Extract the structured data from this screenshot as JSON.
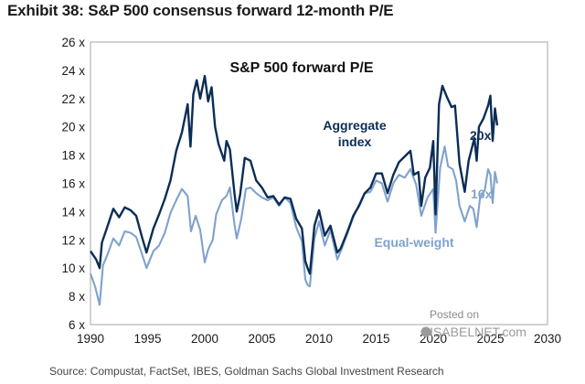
{
  "header": {
    "title": "Exhibit 38: S&P 500 consensus forward 12-month P/E"
  },
  "footer": {
    "source": "Source: Compustat, FactSet, IBES, Goldman Sachs Global Investment Research"
  },
  "watermark": {
    "line1": "Posted on",
    "line2": "ISABELNET.com"
  },
  "colors": {
    "aggregate": "#0b2d55",
    "equal_weight": "#7fa2cd",
    "frame": "#a6a6a6"
  },
  "chart_data": {
    "type": "line",
    "title": "S&P 500 forward P/E",
    "xlabel": "",
    "ylabel": "",
    "xlim": [
      1990,
      2030
    ],
    "ylim": [
      6,
      26
    ],
    "x_ticks": [
      1990,
      1995,
      2000,
      2005,
      2010,
      2015,
      2020,
      2025,
      2030
    ],
    "y_ticks": [
      6,
      8,
      10,
      12,
      14,
      16,
      18,
      20,
      22,
      24,
      26
    ],
    "y_tick_labels": [
      "6 x",
      "8 x",
      "10 x",
      "12 x",
      "14 x",
      "16 x",
      "18 x",
      "20 x",
      "22 x",
      "24 x",
      "26 x"
    ],
    "series": [
      {
        "name": "Aggregate index",
        "label_lines": [
          "Aggregate",
          "index"
        ],
        "end_label": "20x",
        "points": [
          [
            1990.0,
            11.2
          ],
          [
            1990.5,
            10.6
          ],
          [
            1990.8,
            10.0
          ],
          [
            1991.0,
            11.8
          ],
          [
            1991.5,
            13.0
          ],
          [
            1992.0,
            14.2
          ],
          [
            1992.5,
            13.6
          ],
          [
            1993.0,
            14.3
          ],
          [
            1993.5,
            14.1
          ],
          [
            1994.0,
            13.7
          ],
          [
            1994.5,
            12.2
          ],
          [
            1994.9,
            11.1
          ],
          [
            1995.5,
            12.8
          ],
          [
            1996.0,
            13.8
          ],
          [
            1996.5,
            14.9
          ],
          [
            1997.0,
            16.2
          ],
          [
            1997.5,
            18.3
          ],
          [
            1998.0,
            19.6
          ],
          [
            1998.5,
            21.6
          ],
          [
            1998.75,
            18.6
          ],
          [
            1999.0,
            22.3
          ],
          [
            1999.3,
            23.3
          ],
          [
            1999.6,
            22.0
          ],
          [
            2000.0,
            23.6
          ],
          [
            2000.3,
            21.8
          ],
          [
            2000.6,
            22.8
          ],
          [
            2000.9,
            20.0
          ],
          [
            2001.2,
            18.8
          ],
          [
            2001.7,
            17.6
          ],
          [
            2001.9,
            19.0
          ],
          [
            2002.2,
            18.4
          ],
          [
            2002.6,
            15.3
          ],
          [
            2002.8,
            14.0
          ],
          [
            2003.1,
            15.2
          ],
          [
            2003.5,
            17.8
          ],
          [
            2004.0,
            17.6
          ],
          [
            2004.5,
            16.2
          ],
          [
            2005.0,
            15.7
          ],
          [
            2005.5,
            15.0
          ],
          [
            2006.0,
            15.1
          ],
          [
            2006.5,
            14.5
          ],
          [
            2007.0,
            15.0
          ],
          [
            2007.5,
            14.9
          ],
          [
            2008.0,
            13.5
          ],
          [
            2008.5,
            12.8
          ],
          [
            2008.8,
            10.5
          ],
          [
            2009.0,
            10.0
          ],
          [
            2009.2,
            9.6
          ],
          [
            2009.6,
            13.0
          ],
          [
            2010.0,
            14.1
          ],
          [
            2010.5,
            12.3
          ],
          [
            2011.0,
            13.0
          ],
          [
            2011.6,
            11.1
          ],
          [
            2011.9,
            11.4
          ],
          [
            2012.5,
            12.6
          ],
          [
            2013.0,
            13.7
          ],
          [
            2013.5,
            14.4
          ],
          [
            2014.0,
            15.3
          ],
          [
            2014.5,
            15.7
          ],
          [
            2015.0,
            16.7
          ],
          [
            2015.5,
            16.7
          ],
          [
            2016.0,
            15.3
          ],
          [
            2016.5,
            16.6
          ],
          [
            2017.0,
            17.5
          ],
          [
            2017.5,
            17.9
          ],
          [
            2018.0,
            18.3
          ],
          [
            2018.3,
            16.6
          ],
          [
            2018.7,
            16.8
          ],
          [
            2018.95,
            14.4
          ],
          [
            2019.3,
            16.4
          ],
          [
            2019.7,
            17.1
          ],
          [
            2020.0,
            19.0
          ],
          [
            2020.2,
            13.8
          ],
          [
            2020.5,
            21.6
          ],
          [
            2020.8,
            22.9
          ],
          [
            2021.2,
            22.1
          ],
          [
            2021.6,
            21.4
          ],
          [
            2021.9,
            21.5
          ],
          [
            2022.3,
            17.4
          ],
          [
            2022.75,
            15.4
          ],
          [
            2023.1,
            17.6
          ],
          [
            2023.6,
            19.2
          ],
          [
            2023.8,
            17.6
          ],
          [
            2024.0,
            20.0
          ],
          [
            2024.4,
            20.6
          ],
          [
            2024.8,
            21.5
          ],
          [
            2025.0,
            22.2
          ],
          [
            2025.2,
            19.0
          ],
          [
            2025.4,
            21.3
          ],
          [
            2025.6,
            20.1
          ]
        ]
      },
      {
        "name": "Equal-weight",
        "label_lines": [
          "Equal-weight"
        ],
        "end_label": "16x",
        "points": [
          [
            1990.0,
            9.6
          ],
          [
            1990.4,
            8.7
          ],
          [
            1990.8,
            7.4
          ],
          [
            1991.1,
            10.2
          ],
          [
            1991.5,
            11.0
          ],
          [
            1992.0,
            12.1
          ],
          [
            1992.5,
            11.6
          ],
          [
            1993.0,
            12.6
          ],
          [
            1993.5,
            12.5
          ],
          [
            1994.0,
            12.2
          ],
          [
            1994.5,
            11.0
          ],
          [
            1994.9,
            10.0
          ],
          [
            1995.5,
            11.2
          ],
          [
            1996.0,
            11.6
          ],
          [
            1996.5,
            12.5
          ],
          [
            1997.0,
            13.9
          ],
          [
            1997.5,
            14.8
          ],
          [
            1998.0,
            15.6
          ],
          [
            1998.5,
            15.1
          ],
          [
            1998.8,
            12.6
          ],
          [
            1999.2,
            13.7
          ],
          [
            1999.6,
            12.7
          ],
          [
            2000.0,
            10.4
          ],
          [
            2000.3,
            11.3
          ],
          [
            2000.7,
            12.0
          ],
          [
            2001.0,
            13.8
          ],
          [
            2001.5,
            14.8
          ],
          [
            2001.9,
            15.1
          ],
          [
            2002.2,
            15.7
          ],
          [
            2002.6,
            13.1
          ],
          [
            2002.8,
            12.1
          ],
          [
            2003.2,
            13.5
          ],
          [
            2003.6,
            15.6
          ],
          [
            2004.0,
            15.7
          ],
          [
            2004.5,
            15.3
          ],
          [
            2005.0,
            15.0
          ],
          [
            2005.5,
            14.8
          ],
          [
            2006.0,
            15.0
          ],
          [
            2006.5,
            14.4
          ],
          [
            2007.0,
            15.0
          ],
          [
            2007.5,
            14.6
          ],
          [
            2008.0,
            12.9
          ],
          [
            2008.5,
            11.9
          ],
          [
            2008.8,
            9.2
          ],
          [
            2009.0,
            8.8
          ],
          [
            2009.2,
            8.7
          ],
          [
            2009.6,
            12.1
          ],
          [
            2010.0,
            13.3
          ],
          [
            2010.5,
            11.6
          ],
          [
            2011.0,
            12.7
          ],
          [
            2011.6,
            10.6
          ],
          [
            2011.9,
            11.2
          ],
          [
            2012.5,
            12.5
          ],
          [
            2013.0,
            13.6
          ],
          [
            2013.5,
            14.5
          ],
          [
            2014.0,
            15.3
          ],
          [
            2014.5,
            15.4
          ],
          [
            2015.0,
            16.2
          ],
          [
            2015.5,
            16.0
          ],
          [
            2016.0,
            14.7
          ],
          [
            2016.5,
            16.0
          ],
          [
            2017.0,
            16.6
          ],
          [
            2017.5,
            16.4
          ],
          [
            2018.0,
            17.0
          ],
          [
            2018.5,
            15.9
          ],
          [
            2018.95,
            13.7
          ],
          [
            2019.5,
            15.0
          ],
          [
            2020.0,
            15.6
          ],
          [
            2020.2,
            12.5
          ],
          [
            2020.6,
            17.1
          ],
          [
            2021.0,
            18.6
          ],
          [
            2021.3,
            17.2
          ],
          [
            2021.7,
            17.0
          ],
          [
            2022.0,
            16.2
          ],
          [
            2022.3,
            14.4
          ],
          [
            2022.75,
            13.3
          ],
          [
            2023.2,
            14.4
          ],
          [
            2023.5,
            14.2
          ],
          [
            2023.8,
            12.9
          ],
          [
            2024.1,
            15.0
          ],
          [
            2024.5,
            15.5
          ],
          [
            2024.8,
            17.0
          ],
          [
            2025.0,
            16.6
          ],
          [
            2025.2,
            14.6
          ],
          [
            2025.4,
            16.8
          ],
          [
            2025.6,
            16.0
          ]
        ]
      }
    ]
  }
}
